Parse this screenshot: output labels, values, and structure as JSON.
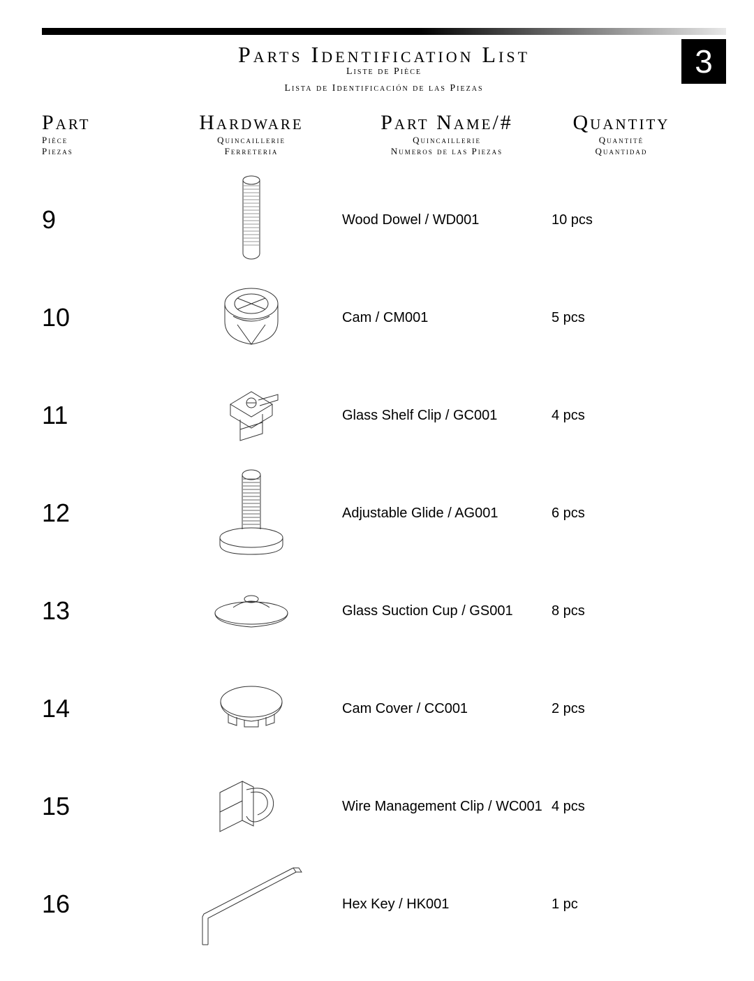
{
  "page_number": "3",
  "title": {
    "main": "Parts  Identification List",
    "fr": "Liste de Pièce",
    "es": "Lista de Identificación de las Piezas"
  },
  "columns": {
    "part": {
      "main": "Part",
      "fr": "Pièce",
      "es": "Piezas"
    },
    "hardware": {
      "main": "Hardware",
      "fr": "Quincaillerie",
      "es": "Ferreteria"
    },
    "name": {
      "main": "Part Name/#",
      "fr": "Quincaillerie",
      "es": "Numeros de las Piezas"
    },
    "qty": {
      "main": "Quantity",
      "fr": "Quantité",
      "es": "Quantidad"
    }
  },
  "rows": [
    {
      "num": "9",
      "icon": "wood-dowel",
      "name": "Wood Dowel / WD001",
      "qty": "10 pcs"
    },
    {
      "num": "10",
      "icon": "cam",
      "name": "Cam / CM001",
      "qty": "5 pcs"
    },
    {
      "num": "11",
      "icon": "shelf-clip",
      "name": "Glass Shelf Clip / GC001",
      "qty": "4 pcs"
    },
    {
      "num": "12",
      "icon": "glide",
      "name": "Adjustable Glide / AG001",
      "qty": "6 pcs"
    },
    {
      "num": "13",
      "icon": "suction-cup",
      "name": "Glass Suction Cup / GS001",
      "qty": "8 pcs"
    },
    {
      "num": "14",
      "icon": "cam-cover",
      "name": "Cam Cover / CC001",
      "qty": "2 pcs"
    },
    {
      "num": "15",
      "icon": "wire-clip",
      "name": "Wire Management Clip / WC001",
      "qty": "4 pcs"
    },
    {
      "num": "16",
      "icon": "hex-key",
      "name": "Hex Key / HK001",
      "qty": "1 pc"
    }
  ],
  "style": {
    "page_bg": "#ffffff",
    "text_color": "#000000",
    "icon_stroke": "#333333",
    "title_fontsize": 32,
    "header_fontsize": 30,
    "subheader_fontsize": 13,
    "partnum_fontsize": 36,
    "body_fontsize": 20
  }
}
